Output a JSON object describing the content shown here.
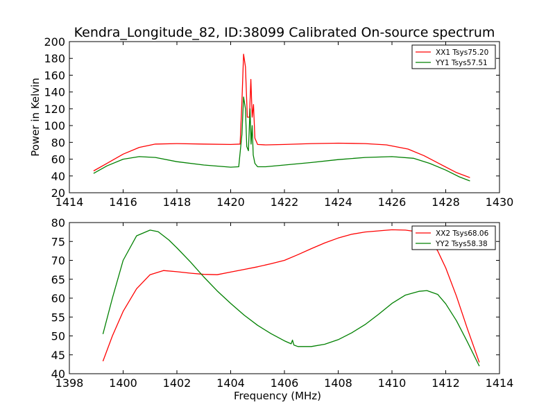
{
  "figure": {
    "title": "Kendra_Longitude_82, ID:38099 Calibrated On-source spectrum"
  },
  "chart_data": [
    {
      "type": "line",
      "title": "Kendra_Longitude_82, ID:38099 Calibrated On-source spectrum",
      "xlabel": "",
      "ylabel": "Power in Kelvin",
      "xlim": [
        1414,
        1430
      ],
      "ylim": [
        20,
        200
      ],
      "xticks": [
        1414,
        1416,
        1418,
        1420,
        1422,
        1424,
        1426,
        1428,
        1430
      ],
      "yticks": [
        20,
        40,
        60,
        80,
        100,
        120,
        140,
        160,
        180,
        200
      ],
      "grid": false,
      "legend_position": "top-right",
      "series": [
        {
          "name": "XX1 Tsys75.20",
          "color": "#ff0000",
          "x": [
            1414.9,
            1415.4,
            1416.0,
            1416.6,
            1417.2,
            1418.0,
            1419.0,
            1420.0,
            1420.35,
            1420.42,
            1420.48,
            1420.55,
            1420.62,
            1420.7,
            1420.75,
            1420.8,
            1420.85,
            1420.9,
            1421.0,
            1421.3,
            1422.0,
            1423.0,
            1424.0,
            1425.0,
            1425.8,
            1426.6,
            1427.2,
            1427.8,
            1428.4,
            1428.9
          ],
          "values": [
            46,
            55,
            66,
            74,
            78,
            78.5,
            78,
            77.5,
            78,
            130,
            185,
            170,
            110,
            110,
            155,
            110,
            125,
            85,
            77.5,
            77,
            77.5,
            78.5,
            79,
            78.5,
            77,
            72,
            64,
            54,
            44,
            38
          ]
        },
        {
          "name": "YY1 Tsys57.51",
          "color": "#008000",
          "x": [
            1414.9,
            1415.4,
            1416.0,
            1416.6,
            1417.2,
            1418.0,
            1419.0,
            1420.0,
            1420.3,
            1420.42,
            1420.48,
            1420.55,
            1420.6,
            1420.66,
            1420.72,
            1420.76,
            1420.8,
            1420.84,
            1420.9,
            1421.0,
            1421.3,
            1422.0,
            1423.0,
            1424.0,
            1425.0,
            1426.0,
            1426.8,
            1427.4,
            1428.0,
            1428.5,
            1428.9
          ],
          "values": [
            43,
            52,
            60,
            63,
            62,
            57,
            53,
            50.5,
            51,
            90,
            134,
            120,
            75,
            70,
            120,
            78,
            100,
            65,
            55,
            51,
            51,
            53,
            56,
            59.5,
            62,
            63,
            61,
            55,
            47,
            39,
            34
          ]
        }
      ]
    },
    {
      "type": "line",
      "title": "",
      "xlabel": "Frequency (MHz)",
      "ylabel": "",
      "xlim": [
        1398,
        1414
      ],
      "ylim": [
        40,
        80
      ],
      "xticks": [
        1398,
        1400,
        1402,
        1404,
        1406,
        1408,
        1410,
        1412,
        1414
      ],
      "yticks": [
        40,
        45,
        50,
        55,
        60,
        65,
        70,
        75,
        80
      ],
      "grid": false,
      "legend_position": "top-right",
      "series": [
        {
          "name": "XX2 Tsys68.06",
          "color": "#ff0000",
          "x": [
            1399.25,
            1399.6,
            1400.0,
            1400.5,
            1401.0,
            1401.5,
            1402.0,
            1402.5,
            1403.0,
            1403.5,
            1404.0,
            1404.5,
            1405.0,
            1405.5,
            1406.0,
            1406.5,
            1407.0,
            1407.5,
            1408.0,
            1408.5,
            1409.0,
            1409.5,
            1410.0,
            1410.5,
            1411.0,
            1411.3,
            1411.7,
            1412.0,
            1412.4,
            1412.8,
            1413.25
          ],
          "values": [
            43.3,
            50,
            56.5,
            62.5,
            66.2,
            67.3,
            67,
            66.6,
            66.3,
            66.2,
            66.9,
            67.6,
            68.3,
            69.1,
            70.0,
            71.5,
            73.1,
            74.6,
            75.9,
            76.9,
            77.5,
            77.8,
            78.1,
            78,
            77.5,
            76.3,
            72.5,
            68,
            60.5,
            52,
            43
          ]
        },
        {
          "name": "YY2 Tsys58.38",
          "color": "#008000",
          "x": [
            1399.25,
            1399.6,
            1400.0,
            1400.5,
            1401.0,
            1401.3,
            1401.7,
            1402.0,
            1402.5,
            1403.0,
            1403.5,
            1404.0,
            1404.5,
            1405.0,
            1405.5,
            1406.0,
            1406.25,
            1406.3,
            1406.35,
            1406.5,
            1407.0,
            1407.5,
            1408.0,
            1408.5,
            1409.0,
            1409.5,
            1410.0,
            1410.5,
            1411.0,
            1411.3,
            1411.7,
            1412.0,
            1412.4,
            1412.8,
            1413.25
          ],
          "values": [
            50.5,
            60,
            70,
            76.5,
            78,
            77.6,
            75.4,
            73.3,
            69.6,
            65.6,
            61.9,
            58.6,
            55.5,
            52.8,
            50.6,
            48.7,
            47.9,
            48.9,
            47.6,
            47.2,
            47.2,
            47.8,
            49.0,
            50.8,
            53.0,
            55.7,
            58.6,
            60.8,
            61.8,
            62,
            61,
            58.5,
            54,
            48.5,
            42
          ]
        }
      ]
    }
  ]
}
